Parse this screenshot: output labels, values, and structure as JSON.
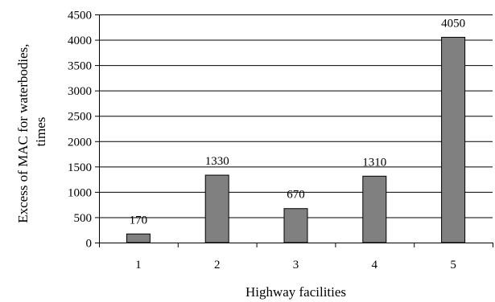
{
  "chart_data": {
    "type": "bar",
    "categories": [
      "1",
      "2",
      "3",
      "4",
      "5"
    ],
    "values": [
      170,
      1330,
      670,
      1310,
      4050
    ],
    "data_labels": [
      "170",
      "1330",
      "670",
      "1310",
      "4050"
    ],
    "xlabel": "Highway facilities",
    "ylabel_lines": [
      "Excess of MAC for waterbodies,",
      "times"
    ],
    "ylim": [
      0,
      4500
    ],
    "yticks": [
      0,
      500,
      1000,
      1500,
      2000,
      2500,
      3000,
      3500,
      4000,
      4500
    ],
    "grid": true,
    "legend": "none",
    "bar_color": "#808080",
    "bar_edge_color": "#000000",
    "grid_color": "#000000"
  }
}
